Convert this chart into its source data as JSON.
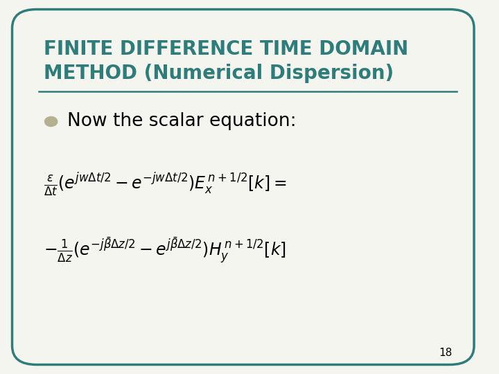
{
  "bg_color": "#f5f5f0",
  "border_color": "#2e7d7a",
  "title_line1": "FINITE DIFFERENCE TIME DOMAIN",
  "title_line2": "METHOD (Numerical Dispersion)",
  "title_color": "#2e7d7a",
  "title_fontsize": 20,
  "bullet_text": "Now the scalar equation:",
  "bullet_color": "#b5b090",
  "bullet_fontsize": 19,
  "eq1": "$\\frac{\\varepsilon}{\\Delta t}(e^{jw\\Delta t/2} - e^{-jw\\Delta t/2})E_x^{\\,n+1/2}[k] =$",
  "eq2": "$-\\frac{1}{\\Delta z}(e^{-j\\bar{\\beta}\\Delta z/2} - e^{j\\bar{\\beta}\\Delta z/2})H_y^{\\,n+1/2}[k]$",
  "eq_fontsize": 17,
  "page_number": "18",
  "page_fontsize": 11
}
